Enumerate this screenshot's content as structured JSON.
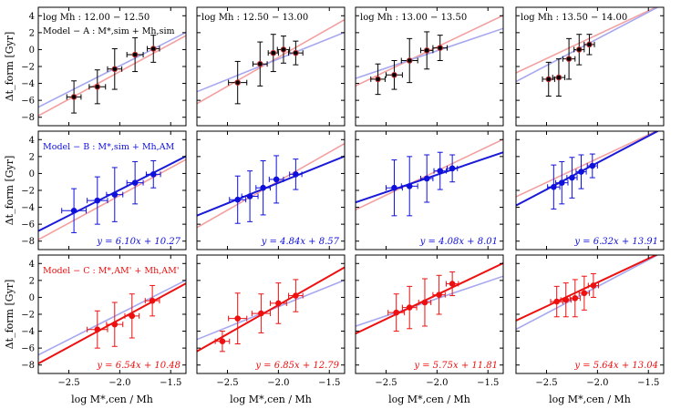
{
  "figure": {
    "xlabel": "log M*,cen / Mh",
    "ylabel": "Δt_form [Gyr]"
  },
  "chart_data": {
    "type": "scatter",
    "xlim": [
      -2.8,
      -1.35
    ],
    "ylim": [
      -9,
      5
    ],
    "xticks": [
      -2.5,
      -2.0,
      -1.5
    ],
    "xtick_labels": [
      "−2.5",
      "−2.0",
      "−1.5"
    ],
    "yticks": [
      -8,
      -6,
      -4,
      -2,
      0,
      2,
      4
    ],
    "ytick_labels": [
      "−8",
      "−6",
      "−4",
      "−2",
      "0",
      "2",
      "4"
    ],
    "columns": [
      {
        "label": "log Mh : 12.00 − 12.50"
      },
      {
        "label": "log Mh : 12.50 − 13.00"
      },
      {
        "label": "log Mh : 13.00 − 13.50"
      },
      {
        "label": "log Mh : 13.50 − 14.00"
      }
    ],
    "rows": [
      {
        "model": "Model − A : M*,sim + Mh,sim",
        "color": "#000000",
        "line_color": "#000000"
      },
      {
        "model": "Model − B : M*,sim + Mh,AM",
        "color": "#1010dd",
        "line_color": "#1a1ad8"
      },
      {
        "model": "Model − C : M*,AM' + Mh,AM'",
        "color": "#ee1010",
        "line_color": "#ee1010"
      }
    ],
    "reference_lines": {
      "red": {
        "color": "#f4a0a0",
        "slope": 6.1,
        "intercept": 10.27
      },
      "blue": {
        "color": "#a8a8f0",
        "slope": 6.1,
        "intercept": 10.27
      }
    },
    "panels": [
      {
        "row": 0,
        "col": 0,
        "fit": null,
        "refs": [
          {
            "ref": "red",
            "slope": 6.54,
            "intercept": 10.48
          },
          {
            "ref": "blue",
            "slope": 6.1,
            "intercept": 10.27
          }
        ],
        "points": [
          {
            "x": -2.45,
            "y": -5.6,
            "xerr": 0.07,
            "yerr": 1.9
          },
          {
            "x": -2.22,
            "y": -4.4,
            "xerr": 0.08,
            "yerr": 2.0
          },
          {
            "x": -2.05,
            "y": -2.3,
            "xerr": 0.07,
            "yerr": 2.4
          },
          {
            "x": -1.85,
            "y": -0.6,
            "xerr": 0.08,
            "yerr": 2.0
          },
          {
            "x": -1.67,
            "y": 0.1,
            "xerr": 0.06,
            "yerr": 1.6
          }
        ]
      },
      {
        "row": 0,
        "col": 1,
        "fit": null,
        "refs": [
          {
            "ref": "red",
            "slope": 6.85,
            "intercept": 12.79
          },
          {
            "ref": "blue",
            "slope": 4.84,
            "intercept": 8.57
          }
        ],
        "points": [
          {
            "x": -2.4,
            "y": -3.9,
            "xerr": 0.09,
            "yerr": 2.5
          },
          {
            "x": -2.18,
            "y": -1.7,
            "xerr": 0.07,
            "yerr": 2.6
          },
          {
            "x": -2.05,
            "y": -0.4,
            "xerr": 0.05,
            "yerr": 2.2
          },
          {
            "x": -1.95,
            "y": 0.0,
            "xerr": 0.06,
            "yerr": 1.6
          },
          {
            "x": -1.83,
            "y": -0.4,
            "xerr": 0.07,
            "yerr": 1.4
          }
        ]
      },
      {
        "row": 0,
        "col": 2,
        "fit": null,
        "refs": [
          {
            "ref": "red",
            "slope": 5.75,
            "intercept": 11.81
          },
          {
            "ref": "blue",
            "slope": 4.08,
            "intercept": 8.01
          }
        ],
        "points": [
          {
            "x": -2.58,
            "y": -3.5,
            "xerr": 0.07,
            "yerr": 1.8
          },
          {
            "x": -2.42,
            "y": -3.0,
            "xerr": 0.08,
            "yerr": 1.7
          },
          {
            "x": -2.27,
            "y": -1.3,
            "xerr": 0.08,
            "yerr": 2.6
          },
          {
            "x": -2.1,
            "y": -0.1,
            "xerr": 0.06,
            "yerr": 2.2
          },
          {
            "x": -1.97,
            "y": 0.2,
            "xerr": 0.07,
            "yerr": 1.5
          }
        ]
      },
      {
        "row": 0,
        "col": 3,
        "fit": null,
        "refs": [
          {
            "ref": "red",
            "slope": 5.64,
            "intercept": 13.04
          },
          {
            "ref": "blue",
            "slope": 6.32,
            "intercept": 13.91
          }
        ],
        "points": [
          {
            "x": -2.48,
            "y": -3.5,
            "xerr": 0.06,
            "yerr": 2.0
          },
          {
            "x": -2.38,
            "y": -3.3,
            "xerr": 0.06,
            "yerr": 2.2
          },
          {
            "x": -2.28,
            "y": -1.1,
            "xerr": 0.06,
            "yerr": 2.4
          },
          {
            "x": -2.18,
            "y": 0.0,
            "xerr": 0.05,
            "yerr": 1.8
          },
          {
            "x": -2.08,
            "y": 0.6,
            "xerr": 0.05,
            "yerr": 1.2
          }
        ]
      },
      {
        "row": 1,
        "col": 0,
        "fit": {
          "slope": 6.1,
          "intercept": 10.27,
          "label": "y = 6.10x + 10.27"
        },
        "refs": [
          {
            "ref": "red",
            "slope": 6.54,
            "intercept": 10.48
          }
        ],
        "points": [
          {
            "x": -2.45,
            "y": -4.4,
            "xerr": 0.12,
            "yerr": 2.6
          },
          {
            "x": -2.22,
            "y": -3.2,
            "xerr": 0.1,
            "yerr": 2.8
          },
          {
            "x": -2.05,
            "y": -2.5,
            "xerr": 0.08,
            "yerr": 3.2
          },
          {
            "x": -1.85,
            "y": -1.1,
            "xerr": 0.08,
            "yerr": 2.5
          },
          {
            "x": -1.67,
            "y": -0.1,
            "xerr": 0.07,
            "yerr": 1.6
          }
        ]
      },
      {
        "row": 1,
        "col": 1,
        "fit": {
          "slope": 4.84,
          "intercept": 8.57,
          "label": "y = 4.84x + 8.57"
        },
        "refs": [
          {
            "ref": "red",
            "slope": 6.85,
            "intercept": 12.79
          }
        ],
        "points": [
          {
            "x": -2.4,
            "y": -3.1,
            "xerr": 0.08,
            "yerr": 2.8
          },
          {
            "x": -2.28,
            "y": -2.7,
            "xerr": 0.08,
            "yerr": 3.0
          },
          {
            "x": -2.15,
            "y": -1.7,
            "xerr": 0.07,
            "yerr": 3.2
          },
          {
            "x": -2.02,
            "y": -0.7,
            "xerr": 0.07,
            "yerr": 2.8
          },
          {
            "x": -1.83,
            "y": -0.1,
            "xerr": 0.06,
            "yerr": 1.8
          }
        ]
      },
      {
        "row": 1,
        "col": 2,
        "fit": {
          "slope": 4.08,
          "intercept": 8.01,
          "label": "y = 4.08x + 8.01"
        },
        "refs": [
          {
            "ref": "red",
            "slope": 5.75,
            "intercept": 11.81
          }
        ],
        "points": [
          {
            "x": -2.42,
            "y": -1.7,
            "xerr": 0.08,
            "yerr": 3.3
          },
          {
            "x": -2.27,
            "y": -1.5,
            "xerr": 0.08,
            "yerr": 3.5
          },
          {
            "x": -2.1,
            "y": -0.6,
            "xerr": 0.06,
            "yerr": 2.8
          },
          {
            "x": -1.97,
            "y": 0.3,
            "xerr": 0.06,
            "yerr": 2.2
          },
          {
            "x": -1.85,
            "y": 0.6,
            "xerr": 0.05,
            "yerr": 1.6
          }
        ]
      },
      {
        "row": 1,
        "col": 3,
        "fit": {
          "slope": 6.32,
          "intercept": 13.91,
          "label": "y = 6.32x + 13.91"
        },
        "refs": [
          {
            "ref": "red",
            "slope": 5.64,
            "intercept": 13.04
          }
        ],
        "points": [
          {
            "x": -2.43,
            "y": -1.6,
            "xerr": 0.06,
            "yerr": 2.6
          },
          {
            "x": -2.35,
            "y": -1.1,
            "xerr": 0.06,
            "yerr": 2.5
          },
          {
            "x": -2.25,
            "y": -0.5,
            "xerr": 0.05,
            "yerr": 2.4
          },
          {
            "x": -2.16,
            "y": 0.2,
            "xerr": 0.05,
            "yerr": 2.0
          },
          {
            "x": -2.05,
            "y": 0.9,
            "xerr": 0.05,
            "yerr": 1.4
          }
        ]
      },
      {
        "row": 2,
        "col": 0,
        "fit": {
          "slope": 6.54,
          "intercept": 10.48,
          "label": "y = 6.54x + 10.48"
        },
        "refs": [
          {
            "ref": "blue",
            "slope": 6.1,
            "intercept": 10.27
          }
        ],
        "points": [
          {
            "x": -2.22,
            "y": -3.8,
            "xerr": 0.1,
            "yerr": 2.2
          },
          {
            "x": -2.05,
            "y": -3.2,
            "xerr": 0.08,
            "yerr": 2.6
          },
          {
            "x": -1.88,
            "y": -2.2,
            "xerr": 0.07,
            "yerr": 2.6
          },
          {
            "x": -1.68,
            "y": -0.4,
            "xerr": 0.07,
            "yerr": 1.8
          }
        ]
      },
      {
        "row": 2,
        "col": 1,
        "fit": {
          "slope": 6.85,
          "intercept": 12.79,
          "label": "y = 6.85x + 12.79"
        },
        "refs": [
          {
            "ref": "blue",
            "slope": 4.84,
            "intercept": 8.57
          }
        ],
        "points": [
          {
            "x": -2.55,
            "y": -5.2,
            "xerr": 0.07,
            "yerr": 1.2
          },
          {
            "x": -2.4,
            "y": -2.5,
            "xerr": 0.09,
            "yerr": 3.0
          },
          {
            "x": -2.17,
            "y": -1.9,
            "xerr": 0.09,
            "yerr": 2.3
          },
          {
            "x": -2.0,
            "y": -0.7,
            "xerr": 0.08,
            "yerr": 2.4
          },
          {
            "x": -1.83,
            "y": 0.2,
            "xerr": 0.07,
            "yerr": 1.9
          }
        ]
      },
      {
        "row": 2,
        "col": 2,
        "fit": {
          "slope": 5.75,
          "intercept": 11.81,
          "label": "y = 5.75x + 11.81"
        },
        "refs": [
          {
            "ref": "blue",
            "slope": 4.08,
            "intercept": 8.01
          }
        ],
        "points": [
          {
            "x": -2.4,
            "y": -1.8,
            "xerr": 0.08,
            "yerr": 2.2
          },
          {
            "x": -2.27,
            "y": -1.2,
            "xerr": 0.07,
            "yerr": 2.5
          },
          {
            "x": -2.12,
            "y": -0.6,
            "xerr": 0.06,
            "yerr": 2.8
          },
          {
            "x": -1.98,
            "y": 0.3,
            "xerr": 0.06,
            "yerr": 2.3
          },
          {
            "x": -1.85,
            "y": 1.6,
            "xerr": 0.06,
            "yerr": 1.4
          }
        ]
      },
      {
        "row": 2,
        "col": 3,
        "fit": {
          "slope": 5.64,
          "intercept": 13.04,
          "label": "y = 5.64x + 13.04"
        },
        "refs": [
          {
            "ref": "blue",
            "slope": 6.32,
            "intercept": 13.91
          }
        ],
        "points": [
          {
            "x": -2.4,
            "y": -0.5,
            "xerr": 0.06,
            "yerr": 1.8
          },
          {
            "x": -2.31,
            "y": -0.3,
            "xerr": 0.05,
            "yerr": 2.0
          },
          {
            "x": -2.22,
            "y": -0.1,
            "xerr": 0.05,
            "yerr": 2.2
          },
          {
            "x": -2.13,
            "y": 0.5,
            "xerr": 0.05,
            "yerr": 2.0
          },
          {
            "x": -2.04,
            "y": 1.4,
            "xerr": 0.05,
            "yerr": 1.4
          }
        ]
      }
    ]
  }
}
